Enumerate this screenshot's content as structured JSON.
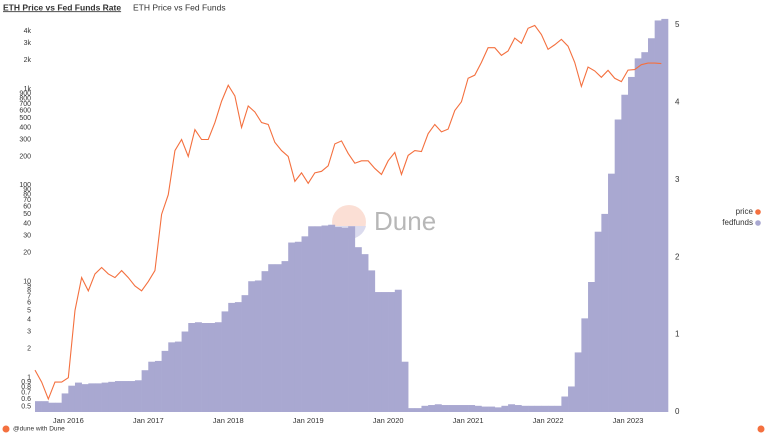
{
  "header": {
    "title": "ETH Price vs Fed Funds Rate",
    "subtitle": "ETH Price vs Fed Funds"
  },
  "chart_data": {
    "type": "line",
    "watermark": "Dune",
    "log_y": true,
    "legend": "right",
    "x": [
      "2015-08",
      "2015-09",
      "2015-10",
      "2015-11",
      "2015-12",
      "2016-01",
      "2016-02",
      "2016-03",
      "2016-04",
      "2016-05",
      "2016-06",
      "2016-07",
      "2016-08",
      "2016-09",
      "2016-10",
      "2016-11",
      "2016-12",
      "2017-01",
      "2017-02",
      "2017-03",
      "2017-04",
      "2017-05",
      "2017-06",
      "2017-07",
      "2017-08",
      "2017-09",
      "2017-10",
      "2017-11",
      "2017-12",
      "2018-01",
      "2018-02",
      "2018-03",
      "2018-04",
      "2018-05",
      "2018-06",
      "2018-07",
      "2018-08",
      "2018-09",
      "2018-10",
      "2018-11",
      "2018-12",
      "2019-01",
      "2019-02",
      "2019-03",
      "2019-04",
      "2019-05",
      "2019-06",
      "2019-07",
      "2019-08",
      "2019-09",
      "2019-10",
      "2019-11",
      "2019-12",
      "2020-01",
      "2020-02",
      "2020-03",
      "2020-04",
      "2020-05",
      "2020-06",
      "2020-07",
      "2020-08",
      "2020-09",
      "2020-10",
      "2020-11",
      "2020-12",
      "2021-01",
      "2021-02",
      "2021-03",
      "2021-04",
      "2021-05",
      "2021-06",
      "2021-07",
      "2021-08",
      "2021-09",
      "2021-10",
      "2021-11",
      "2021-12",
      "2022-01",
      "2022-02",
      "2022-03",
      "2022-04",
      "2022-05",
      "2022-06",
      "2022-07",
      "2022-08",
      "2022-09",
      "2022-10",
      "2022-11",
      "2022-12",
      "2023-01",
      "2023-02",
      "2023-03",
      "2023-04",
      "2023-05",
      "2023-06"
    ],
    "series": [
      {
        "name": "price",
        "type": "line",
        "color": "#f4703f",
        "values": [
          1.2,
          0.9,
          0.6,
          0.9,
          0.9,
          1.0,
          5,
          11,
          8,
          12,
          14,
          12,
          11,
          13,
          11,
          9,
          8,
          10,
          13,
          50,
          80,
          230,
          300,
          200,
          380,
          300,
          300,
          450,
          750,
          1100,
          850,
          400,
          670,
          580,
          450,
          430,
          280,
          230,
          200,
          110,
          135,
          105,
          135,
          140,
          160,
          270,
          290,
          215,
          170,
          180,
          180,
          150,
          130,
          180,
          220,
          130,
          205,
          230,
          225,
          345,
          430,
          360,
          385,
          600,
          740,
          1300,
          1400,
          1900,
          2700,
          2700,
          2250,
          2500,
          3400,
          3000,
          4300,
          4600,
          3700,
          2600,
          2900,
          3300,
          2800,
          1900,
          1070,
          1700,
          1550,
          1330,
          1570,
          1300,
          1200,
          1580,
          1600,
          1800,
          1870,
          1870,
          1850
        ]
      },
      {
        "name": "fedfunds",
        "type": "bar",
        "axis": "y2",
        "color": "#a9a8d1",
        "values": [
          0.14,
          0.14,
          0.12,
          0.12,
          0.24,
          0.34,
          0.38,
          0.36,
          0.37,
          0.37,
          0.38,
          0.39,
          0.4,
          0.4,
          0.4,
          0.41,
          0.54,
          0.65,
          0.66,
          0.79,
          0.9,
          0.91,
          1.04,
          1.15,
          1.16,
          1.15,
          1.15,
          1.16,
          1.3,
          1.41,
          1.42,
          1.51,
          1.69,
          1.7,
          1.82,
          1.91,
          1.91,
          1.95,
          2.19,
          2.2,
          2.27,
          2.4,
          2.4,
          2.41,
          2.42,
          2.39,
          2.38,
          2.4,
          2.13,
          2.04,
          1.83,
          1.55,
          1.55,
          1.55,
          1.58,
          0.65,
          0.05,
          0.05,
          0.08,
          0.09,
          0.1,
          0.09,
          0.09,
          0.09,
          0.09,
          0.09,
          0.08,
          0.07,
          0.07,
          0.06,
          0.08,
          0.1,
          0.09,
          0.08,
          0.08,
          0.08,
          0.08,
          0.08,
          0.08,
          0.2,
          0.33,
          0.77,
          1.21,
          1.68,
          2.33,
          2.56,
          3.08,
          3.78,
          4.1,
          4.33,
          4.57,
          4.65,
          4.83,
          5.06,
          5.08
        ]
      }
    ],
    "xlim": [
      "2015-08",
      "2023-07"
    ],
    "xticks": [
      {
        "value": "2016-01",
        "label": "Jan 2016"
      },
      {
        "value": "2017-01",
        "label": "Jan 2017"
      },
      {
        "value": "2018-01",
        "label": "Jan 2018"
      },
      {
        "value": "2019-01",
        "label": "Jan 2019"
      },
      {
        "value": "2020-01",
        "label": "Jan 2020"
      },
      {
        "value": "2021-01",
        "label": "Jan 2021"
      },
      {
        "value": "2022-01",
        "label": "Jan 2022"
      },
      {
        "value": "2023-01",
        "label": "Jan 2023"
      }
    ],
    "ylim": [
      0.44,
      5000
    ],
    "yticks": [
      {
        "value": 4000,
        "label": "4k"
      },
      {
        "value": 3000,
        "label": "3k"
      },
      {
        "value": 2000,
        "label": "2k"
      },
      {
        "value": 1000,
        "label": "1k"
      },
      900,
      800,
      700,
      600,
      500,
      400,
      300,
      200,
      100,
      90,
      80,
      70,
      60,
      50,
      40,
      30,
      20,
      10,
      9,
      8,
      7,
      6,
      5,
      4,
      3,
      2,
      1,
      0.9,
      0.8,
      0.7,
      0.6,
      0.5
    ],
    "y2lim": [
      0,
      5.04
    ],
    "y2ticks": [
      0,
      1,
      2,
      3,
      4,
      5
    ]
  },
  "footer": {
    "credit": "@dune with Dune"
  }
}
